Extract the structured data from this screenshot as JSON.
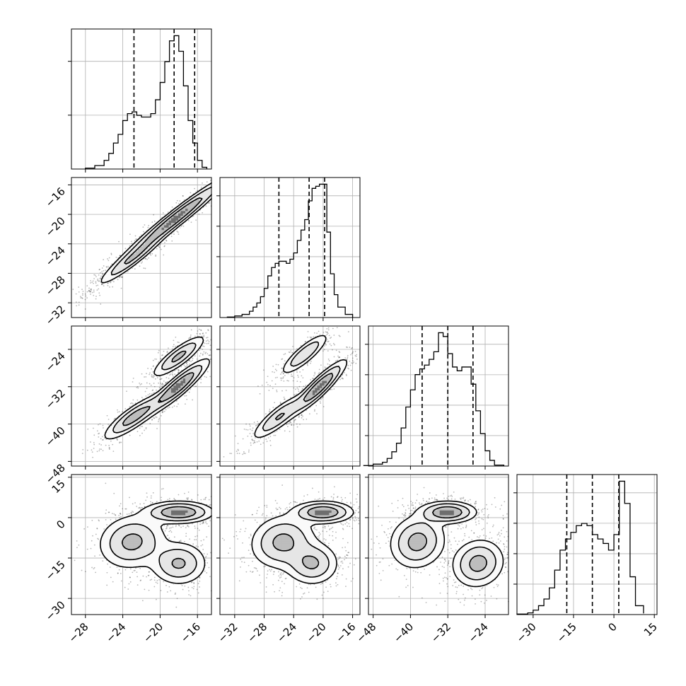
{
  "chart_data": {
    "type": "corner",
    "grid": true,
    "legend": "none",
    "parameters": [
      {
        "ticks": [
          "−28",
          "−24",
          "−20",
          "−16"
        ],
        "tick_values": [
          -28,
          -24,
          -20,
          -16
        ],
        "range": [
          -29.5,
          -14.5
        ]
      },
      {
        "ticks": [
          "−32",
          "−28",
          "−24",
          "−20",
          "−16"
        ],
        "tick_values": [
          -32,
          -28,
          -24,
          -20,
          -16
        ],
        "range": [
          -34.0,
          -15.0
        ]
      },
      {
        "ticks": [
          "−48",
          "−40",
          "−32",
          "−24"
        ],
        "tick_values": [
          -48,
          -40,
          -32,
          -24
        ],
        "range": [
          -49.0,
          -19.0
        ]
      },
      {
        "ticks": [
          "−30",
          "−15",
          "0",
          "15"
        ],
        "tick_values": [
          -30,
          -15,
          0,
          15
        ],
        "range": [
          -36.0,
          16.0
        ]
      }
    ],
    "y_tick_labels": {
      "1": [
        "−16",
        "−20",
        "−24",
        "−28",
        "−32"
      ],
      "2": [
        "−24",
        "−32",
        "−40",
        "−48"
      ],
      "3": [
        "15",
        "0",
        "−15",
        "−30"
      ]
    },
    "quantiles": [
      [
        -22.8,
        -18.5,
        -16.3
      ],
      [
        -26.0,
        -21.9,
        -19.8
      ],
      [
        -37.5,
        -32.0,
        -26.6
      ],
      [
        -17.5,
        -8.0,
        1.8
      ]
    ],
    "histograms": [
      {
        "bin_edges": [
          -28.0,
          -27.0,
          -26.0,
          -25.5,
          -25.0,
          -24.5,
          -24.0,
          -23.5,
          -23.0,
          -22.5,
          -22.0,
          -21.5,
          -21.0,
          -20.5,
          -20.0,
          -19.5,
          -19.0,
          -18.5,
          -18.0,
          -17.5,
          -17.0,
          -16.5,
          -16.0,
          -15.5,
          -15.0
        ],
        "counts": [
          0.5,
          2,
          5,
          9,
          15,
          20,
          28,
          32,
          33,
          31,
          30,
          30,
          32,
          40,
          50,
          62,
          74,
          77,
          68,
          48,
          28,
          15,
          5,
          1
        ]
      },
      {
        "bin_edges": [
          -33.0,
          -32.0,
          -31.0,
          -30.0,
          -29.5,
          -29.0,
          -28.5,
          -28.0,
          -27.5,
          -27.0,
          -26.5,
          -26.0,
          -25.5,
          -25.0,
          -24.5,
          -24.0,
          -23.5,
          -23.0,
          -22.5,
          -22.0,
          -21.5,
          -21.0,
          -20.5,
          -20.0,
          -19.5,
          -19.0,
          -18.5,
          -18.0,
          -17.0,
          -16.0
        ],
        "counts": [
          0.5,
          1.5,
          3,
          6,
          10,
          14,
          20,
          28,
          40,
          48,
          52,
          54,
          54,
          52,
          56,
          62,
          74,
          84,
          94,
          112,
          124,
          126,
          128,
          128,
          82,
          42,
          22,
          10,
          3
        ]
      },
      {
        "bin_edges": [
          -50.0,
          -48.0,
          -46.0,
          -45.0,
          -44.0,
          -43.0,
          -42.0,
          -41.0,
          -40.0,
          -39.0,
          -38.0,
          -37.0,
          -36.0,
          -35.0,
          -34.0,
          -33.0,
          -32.0,
          -31.0,
          -30.0,
          -29.0,
          -28.0,
          -27.0,
          -26.0,
          -25.0,
          -24.0,
          -23.0,
          -22.0,
          -20.0
        ],
        "counts": [
          0.5,
          2,
          4,
          8,
          15,
          24,
          40,
          62,
          80,
          96,
          102,
          106,
          112,
          120,
          140,
          136,
          118,
          104,
          100,
          104,
          104,
          86,
          58,
          34,
          16,
          6,
          1
        ]
      },
      {
        "bin_edges": [
          -36.0,
          -32.0,
          -30.0,
          -28.0,
          -26.0,
          -24.0,
          -22.0,
          -20.0,
          -18.0,
          -16.0,
          -14.0,
          -12.0,
          -10.0,
          -8.0,
          -6.0,
          -4.0,
          -2.0,
          0.0,
          2.0,
          4.0,
          6.0,
          8.0,
          11.0
        ],
        "counts": [
          0.5,
          1.5,
          4,
          8,
          14,
          24,
          40,
          58,
          68,
          74,
          80,
          82,
          80,
          72,
          68,
          64,
          58,
          72,
          120,
          100,
          34,
          8,
          1
        ]
      }
    ],
    "pair_blobs": {
      "1,0": [
        {
          "cx": -18.3,
          "cy": -20.5,
          "sx": 2.8,
          "sy": 2.8,
          "rho": 0.97,
          "w": 0.62
        },
        {
          "cx": -23.0,
          "cy": -26.0,
          "sx": 1.8,
          "sy": 1.8,
          "rho": 0.94,
          "w": 0.38
        }
      ],
      "2,0": [
        {
          "cx": -18.0,
          "cy": -31.8,
          "sx": 1.6,
          "sy": 2.8,
          "rho": 0.9,
          "w": 0.4
        },
        {
          "cx": -18.0,
          "cy": -25.5,
          "sx": 1.4,
          "sy": 2.2,
          "rho": 0.85,
          "w": 0.28
        },
        {
          "cx": -22.8,
          "cy": -38.5,
          "sx": 1.6,
          "sy": 2.4,
          "rho": 0.85,
          "w": 0.32
        }
      ],
      "2,1": [
        {
          "cx": -20.5,
          "cy": -32.0,
          "sx": 1.8,
          "sy": 2.8,
          "rho": 0.9,
          "w": 0.45
        },
        {
          "cx": -22.5,
          "cy": -25.0,
          "sx": 1.6,
          "sy": 2.2,
          "rho": 0.85,
          "w": 0.27
        },
        {
          "cx": -26.0,
          "cy": -38.5,
          "sx": 1.8,
          "sy": 2.4,
          "rho": 0.85,
          "w": 0.28
        }
      ],
      "3,0": [
        {
          "cx": -18.0,
          "cy": 2.0,
          "sx": 1.8,
          "sy": 2.0,
          "rho": 0.0,
          "w": 0.42
        },
        {
          "cx": -23.0,
          "cy": -9.0,
          "sx": 1.8,
          "sy": 5.0,
          "rho": 0.1,
          "w": 0.3
        },
        {
          "cx": -18.0,
          "cy": -17.0,
          "sx": 1.5,
          "sy": 4.0,
          "rho": 0.0,
          "w": 0.28
        }
      ],
      "3,1": [
        {
          "cx": -20.0,
          "cy": 2.0,
          "sx": 2.0,
          "sy": 2.0,
          "rho": 0.0,
          "w": 0.42
        },
        {
          "cx": -25.5,
          "cy": -9.0,
          "sx": 2.2,
          "sy": 5.0,
          "rho": 0.1,
          "w": 0.3
        },
        {
          "cx": -21.5,
          "cy": -17.0,
          "sx": 1.8,
          "sy": 4.0,
          "rho": 0.0,
          "w": 0.28
        }
      ],
      "3,2": [
        {
          "cx": -32.0,
          "cy": 2.0,
          "sx": 3.0,
          "sy": 2.0,
          "rho": 0.0,
          "w": 0.4
        },
        {
          "cx": -38.5,
          "cy": -9.0,
          "sx": 3.0,
          "sy": 5.0,
          "rho": 0.1,
          "w": 0.3
        },
        {
          "cx": -25.5,
          "cy": -17.0,
          "sx": 2.8,
          "sy": 4.5,
          "rho": 0.1,
          "w": 0.3
        }
      ]
    },
    "contour_levels": [
      0.12,
      0.3,
      0.6
    ]
  }
}
